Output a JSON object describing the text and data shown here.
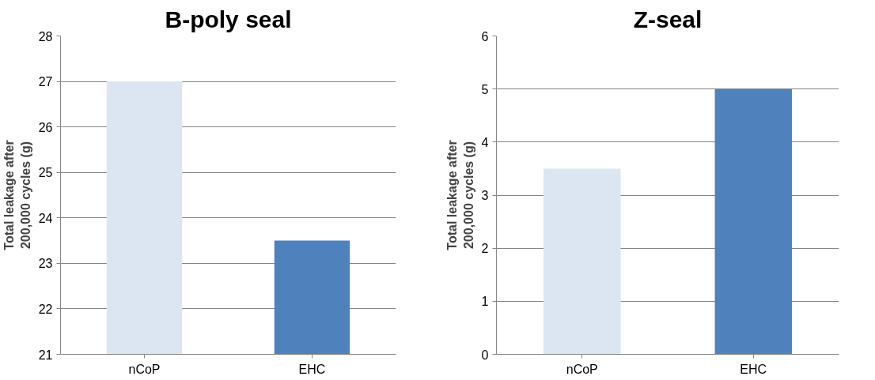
{
  "chart_data": [
    {
      "type": "bar",
      "title": "B-poly seal",
      "ylabel": "Total leakage after\n200,000 cycles (g)",
      "categories": [
        "nCoP",
        "EHC"
      ],
      "values": [
        27,
        23.5
      ],
      "colors": [
        "#dce6f2",
        "#4f81bd"
      ],
      "ylim": [
        21,
        28
      ],
      "yticks": [
        21,
        22,
        23,
        24,
        25,
        26,
        27,
        28
      ],
      "grid": "y"
    },
    {
      "type": "bar",
      "title": "Z-seal",
      "ylabel": "Total leakage after\n200,000 cycles (g)",
      "categories": [
        "nCoP",
        "EHC"
      ],
      "values": [
        3.5,
        5
      ],
      "colors": [
        "#dce6f2",
        "#4f81bd"
      ],
      "ylim": [
        0,
        6
      ],
      "yticks": [
        0,
        1,
        2,
        3,
        4,
        5,
        6
      ],
      "grid": "y"
    }
  ]
}
